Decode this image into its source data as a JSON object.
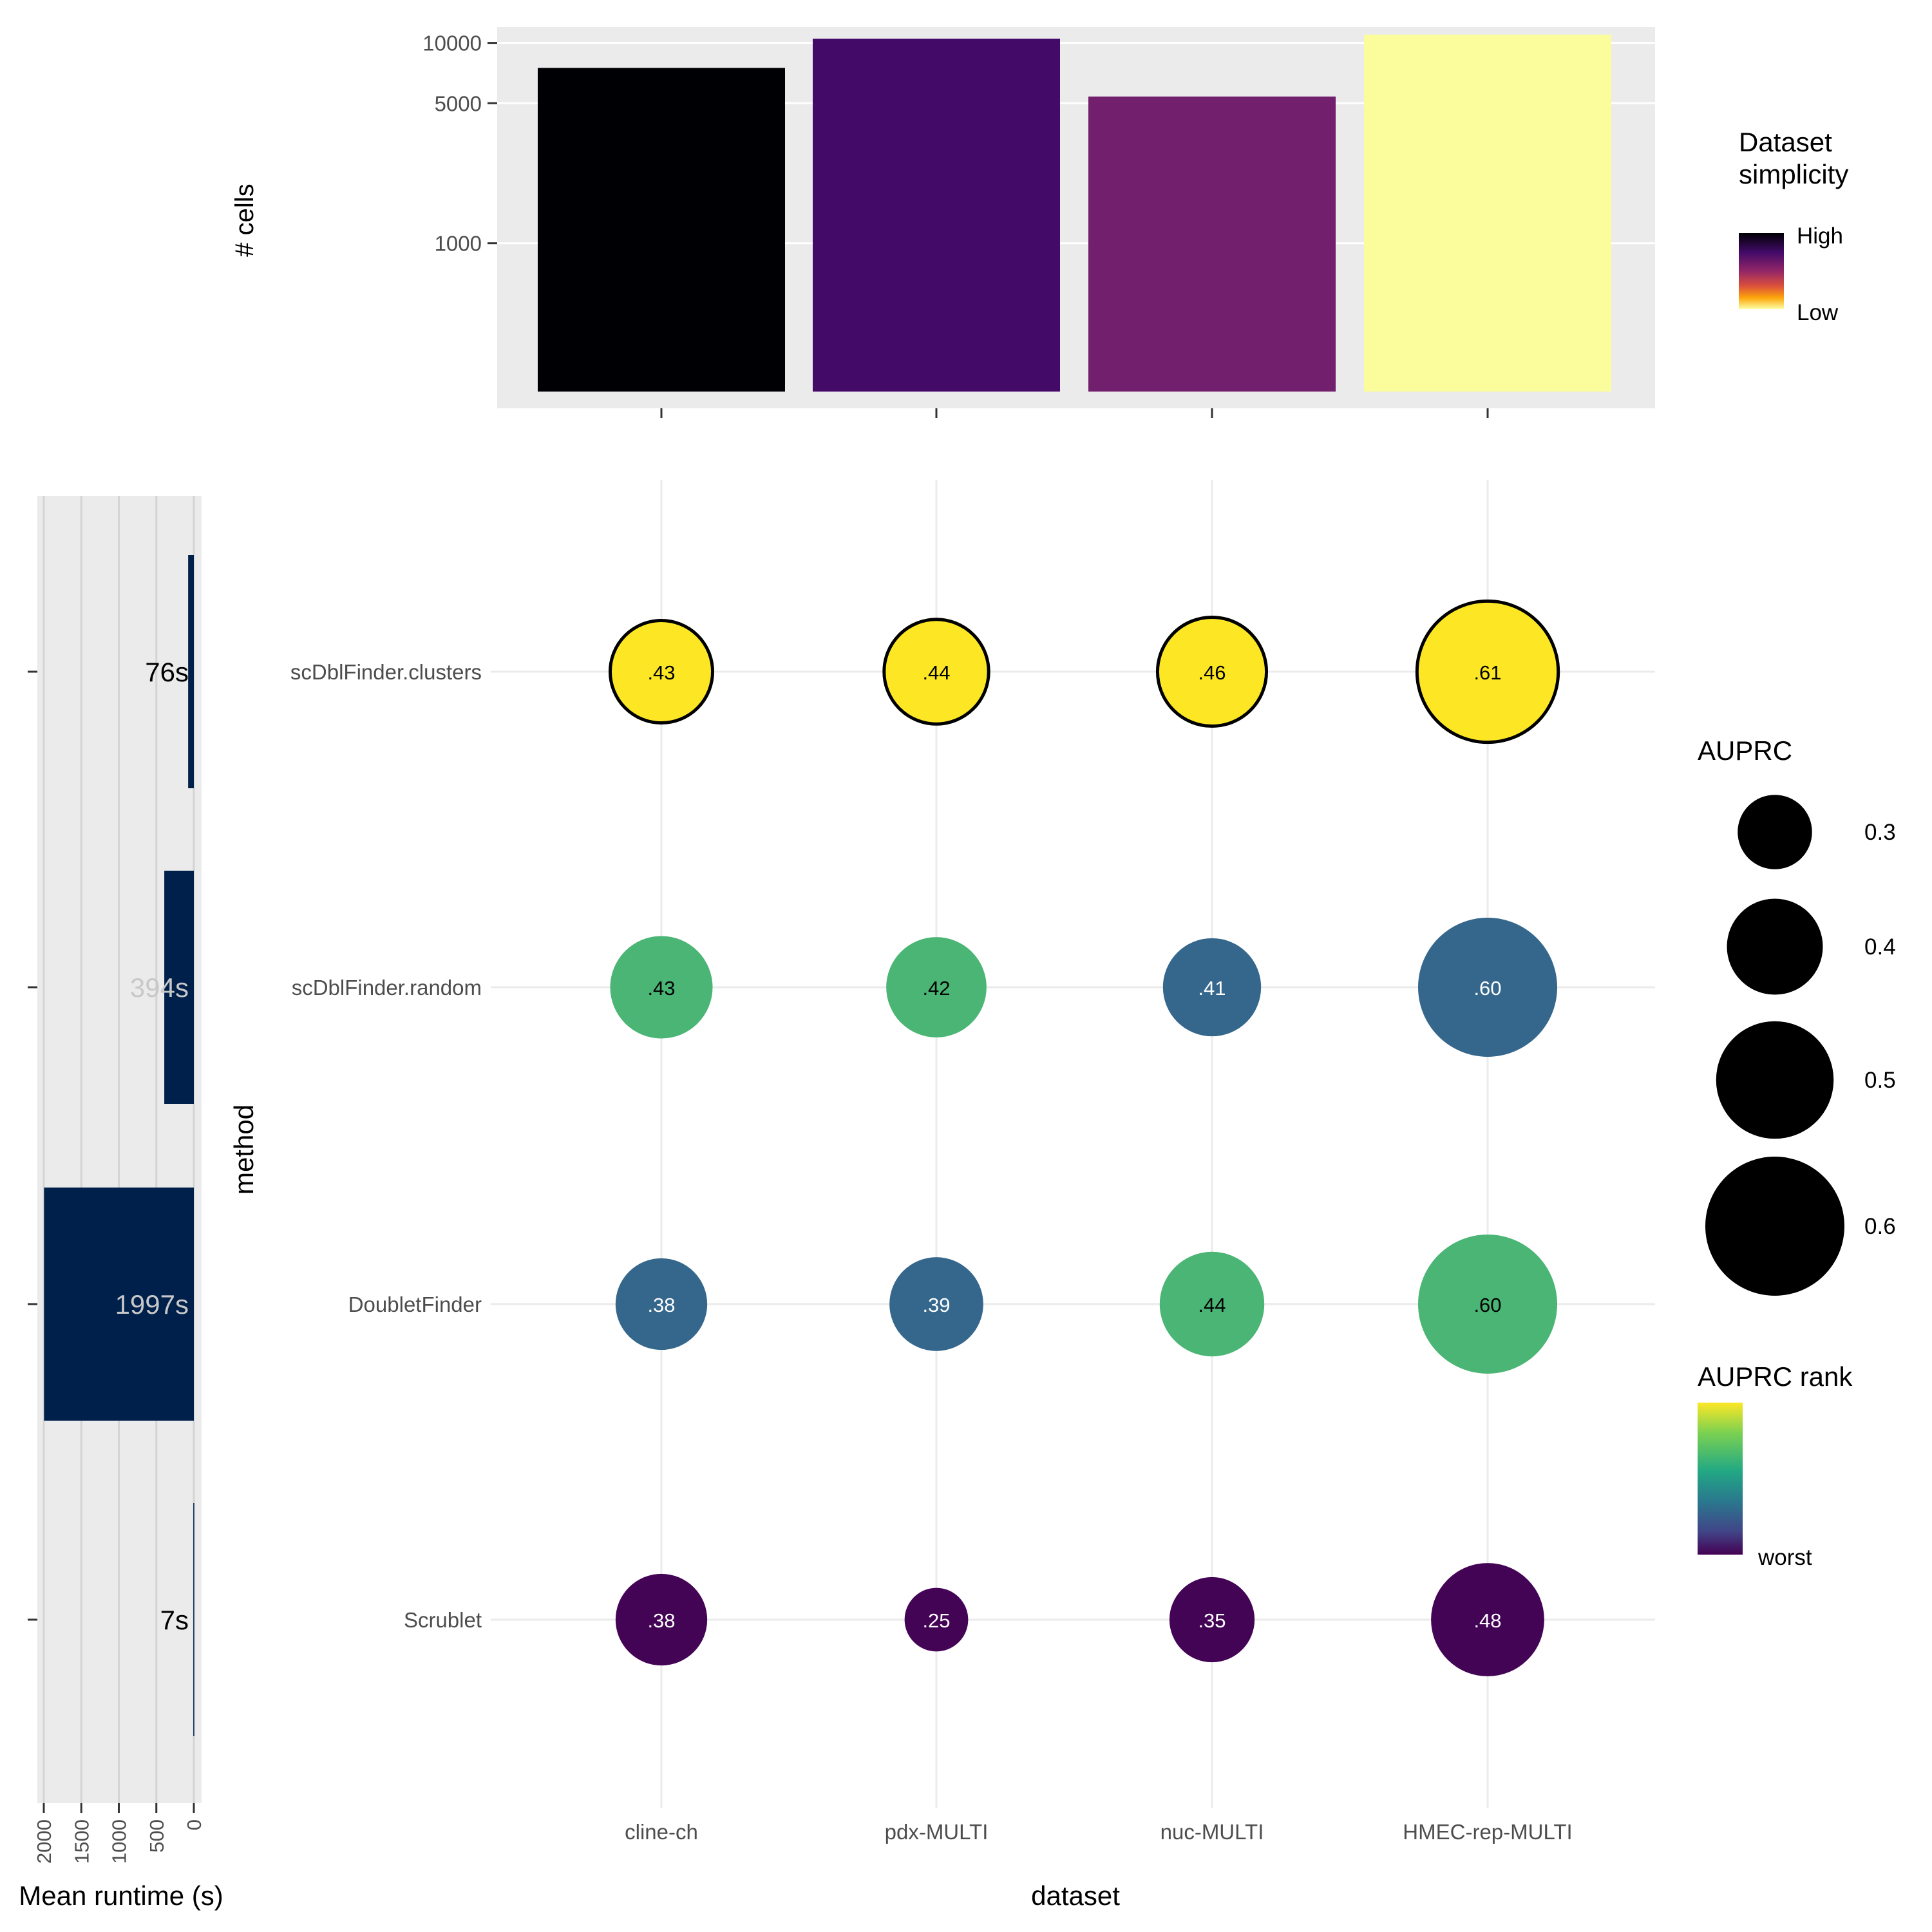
{
  "chart_data": [
    {
      "id": "cells",
      "type": "bar",
      "ylabel": "# cells",
      "yscale": "log",
      "ylim": [
        150,
        12000
      ],
      "yticks": [
        1000,
        5000,
        10000
      ],
      "ytick_labels": [
        "1000",
        "5000",
        "10000"
      ],
      "categories": [
        "cline-ch",
        "pdx-MULTI",
        "nuc-MULTI",
        "HMEC-rep-MULTI"
      ],
      "values": [
        7500,
        10500,
        5400,
        11000
      ],
      "colors": [
        "#000004",
        "#440a68",
        "#721f6e",
        "#fbfd9c"
      ],
      "grid": true,
      "legend": {
        "title_lines": [
          "Dataset",
          "simplicity"
        ],
        "high_label": "High",
        "low_label": "Low",
        "position": "right"
      }
    },
    {
      "id": "runtime",
      "type": "bar",
      "orientation": "horizontal-reversed",
      "xlabel": "Mean runtime (s)",
      "xlim": [
        0,
        2050
      ],
      "xticks": [
        0,
        500,
        1000,
        1500,
        2000
      ],
      "xtick_labels": [
        "0",
        "500",
        "1000",
        "1500",
        "2000"
      ],
      "categories": [
        "scDblFinder.clusters",
        "scDblFinder.random",
        "DoubletFinder",
        "Scrublet"
      ],
      "values": [
        76,
        394,
        1997,
        7
      ],
      "labels": [
        "76s",
        "394s",
        "1997s",
        "7s"
      ],
      "label_colors": [
        "#000000",
        "#c8c8c8",
        "#c8c8c8",
        "#000000"
      ],
      "bar_color": "#00204c",
      "grid": true
    },
    {
      "id": "auprc",
      "type": "scatter",
      "xlabel": "dataset",
      "ylabel": "method",
      "x_categories": [
        "cline-ch",
        "pdx-MULTI",
        "nuc-MULTI",
        "HMEC-rep-MULTI"
      ],
      "y_categories": [
        "scDblFinder.clusters",
        "scDblFinder.random",
        "DoubletFinder",
        "Scrublet"
      ],
      "points": [
        {
          "method": "scDblFinder.clusters",
          "dataset": "cline-ch",
          "auprc": 0.43,
          "label": ".43",
          "color": "#fde725",
          "best": true,
          "label_color": "#000000"
        },
        {
          "method": "scDblFinder.clusters",
          "dataset": "pdx-MULTI",
          "auprc": 0.44,
          "label": ".44",
          "color": "#fde725",
          "best": true,
          "label_color": "#000000"
        },
        {
          "method": "scDblFinder.clusters",
          "dataset": "nuc-MULTI",
          "auprc": 0.46,
          "label": ".46",
          "color": "#fde725",
          "best": true,
          "label_color": "#000000"
        },
        {
          "method": "scDblFinder.clusters",
          "dataset": "HMEC-rep-MULTI",
          "auprc": 0.61,
          "label": ".61",
          "color": "#fde725",
          "best": true,
          "label_color": "#000000"
        },
        {
          "method": "scDblFinder.random",
          "dataset": "cline-ch",
          "auprc": 0.43,
          "label": ".43",
          "color": "#4ab574",
          "best": false,
          "label_color": "#000000"
        },
        {
          "method": "scDblFinder.random",
          "dataset": "pdx-MULTI",
          "auprc": 0.42,
          "label": ".42",
          "color": "#4ab574",
          "best": false,
          "label_color": "#000000"
        },
        {
          "method": "scDblFinder.random",
          "dataset": "nuc-MULTI",
          "auprc": 0.41,
          "label": ".41",
          "color": "#35678c",
          "best": false,
          "label_color": "#ffffff"
        },
        {
          "method": "scDblFinder.random",
          "dataset": "HMEC-rep-MULTI",
          "auprc": 0.6,
          "label": ".60",
          "color": "#35678c",
          "best": false,
          "label_color": "#ffffff"
        },
        {
          "method": "DoubletFinder",
          "dataset": "cline-ch",
          "auprc": 0.38,
          "label": ".38",
          "color": "#35678c",
          "best": false,
          "label_color": "#ffffff"
        },
        {
          "method": "DoubletFinder",
          "dataset": "pdx-MULTI",
          "auprc": 0.39,
          "label": ".39",
          "color": "#35678c",
          "best": false,
          "label_color": "#ffffff"
        },
        {
          "method": "DoubletFinder",
          "dataset": "nuc-MULTI",
          "auprc": 0.44,
          "label": ".44",
          "color": "#4ab574",
          "best": false,
          "label_color": "#000000"
        },
        {
          "method": "DoubletFinder",
          "dataset": "HMEC-rep-MULTI",
          "auprc": 0.6,
          "label": ".60",
          "color": "#4ab574",
          "best": false,
          "label_color": "#000000"
        },
        {
          "method": "Scrublet",
          "dataset": "cline-ch",
          "auprc": 0.38,
          "label": ".38",
          "color": "#440456",
          "best": false,
          "label_color": "#ffffff"
        },
        {
          "method": "Scrublet",
          "dataset": "pdx-MULTI",
          "auprc": 0.25,
          "label": ".25",
          "color": "#440456",
          "best": false,
          "label_color": "#ffffff"
        },
        {
          "method": "Scrublet",
          "dataset": "nuc-MULTI",
          "auprc": 0.35,
          "label": ".35",
          "color": "#440456",
          "best": false,
          "label_color": "#ffffff"
        },
        {
          "method": "Scrublet",
          "dataset": "HMEC-rep-MULTI",
          "auprc": 0.48,
          "label": ".48",
          "color": "#440456",
          "best": false,
          "label_color": "#ffffff"
        }
      ],
      "grid": true,
      "size_legend": {
        "title": "AUPRC",
        "values": [
          0.3,
          0.4,
          0.5,
          0.6
        ],
        "labels": [
          "0.3",
          "0.4",
          "0.5",
          "0.6"
        ],
        "position": "right"
      },
      "color_legend": {
        "title": "AUPRC rank",
        "low_label": "worst",
        "position": "right"
      }
    }
  ]
}
